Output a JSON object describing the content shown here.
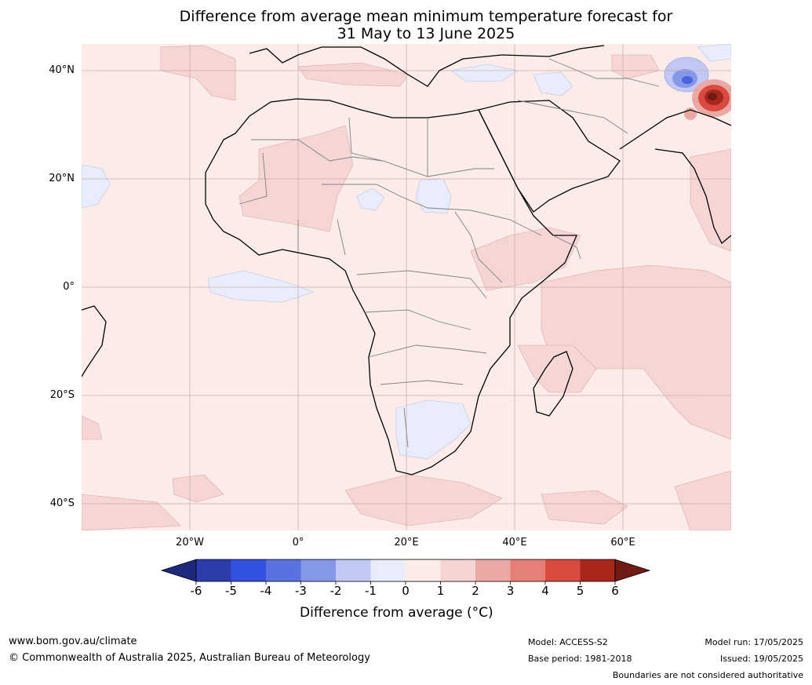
{
  "title": {
    "line1": "Difference from average mean minimum temperature forecast for",
    "line2": "31 May to 13 June 2025"
  },
  "map": {
    "lat_labels": [
      "40°N",
      "20°N",
      "0°",
      "20°S",
      "40°S"
    ],
    "lon_labels": [
      "20°W",
      "0°",
      "20°E",
      "40°E",
      "60°E"
    ],
    "base_color": "#fbebe9",
    "anomaly_colors": {
      "cool_light": "#e9edfb",
      "warm_light": "#f5d6d5",
      "warm_medium": "#e9a9a6",
      "warm_strong": "#c9443a",
      "warm_extreme": "#7e1e16",
      "cool_medium": "#8497e6",
      "cool_strong": "#4a63dc"
    }
  },
  "colorbar": {
    "ticks": [
      "-6",
      "-5",
      "-4",
      "-3",
      "-2",
      "-1",
      "0",
      "1",
      "2",
      "3",
      "4",
      "5",
      "6"
    ],
    "colors": [
      "#1d2a7c",
      "#2a3daa",
      "#3352e0",
      "#5a72e0",
      "#8597e7",
      "#c0c8f3",
      "#e9ecfb",
      "#fbebe9",
      "#f5d4d3",
      "#eaa9a5",
      "#e67f77",
      "#d94a40",
      "#a8271d",
      "#6f1a13"
    ],
    "label": "Difference from average (°C)"
  },
  "footer": {
    "website": "www.bom.gov.au/climate",
    "copyright": "© Commonwealth of Australia 2025, Australian Bureau of Meteorology",
    "model": "Model: ACCESS-S2",
    "base_period": "Base period: 1981-2018",
    "model_run": "Model run: 17/05/2025",
    "issued": "Issued: 19/05/2025",
    "disclaimer": "Boundaries are not considered authoritative"
  }
}
